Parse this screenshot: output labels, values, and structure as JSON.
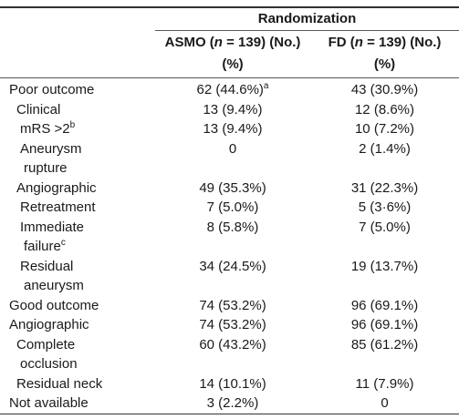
{
  "table": {
    "group_header": "Randomization",
    "columns": [
      {
        "text_before": "ASMO (",
        "italic": "n",
        "text_after": " = 139) (No.) (%)"
      },
      {
        "text_before": "FD (",
        "italic": "n",
        "text_after": " = 139) (No.) (%)"
      }
    ],
    "rows": [
      {
        "label": "Poor outcome",
        "values": [
          "62 (44.6%)",
          "43 (30.9%)"
        ],
        "value_note": "a"
      },
      {
        "label": "Clinical",
        "values": [
          "13 (9.4%)",
          "12 (8.6%)"
        ]
      },
      {
        "label": "mRS >2",
        "label_note": "b",
        "values": [
          "13 (9.4%)",
          "10 (7.2%)"
        ]
      },
      {
        "label": "Aneurysm rupture",
        "values": [
          "0",
          "2 (1.4%)"
        ]
      },
      {
        "label": "Angiographic",
        "values": [
          "49 (35.3%)",
          "31 (22.3%)"
        ]
      },
      {
        "label": "Retreatment",
        "values": [
          "7 (5.0%)",
          "5 (3·6%)"
        ]
      },
      {
        "label": "Immediate failure",
        "label_note": "c",
        "values": [
          "8 (5.8%)",
          "7 (5.0%)"
        ]
      },
      {
        "label": "Residual aneurysm",
        "values": [
          "34 (24.5%)",
          "19 (13.7%)"
        ]
      },
      {
        "label": "Good outcome",
        "values": [
          "74 (53.2%)",
          "96 (69.1%)"
        ]
      },
      {
        "label": "Angiographic",
        "values": [
          "74 (53.2%)",
          "96 (69.1%)"
        ]
      },
      {
        "label": "Complete occlusion",
        "values": [
          "60 (43.2%)",
          "85 (61.2%)"
        ]
      },
      {
        "label": "Residual neck",
        "values": [
          "14 (10.1%)",
          "11 (7.9%)"
        ]
      },
      {
        "label": "Not available",
        "values": [
          "3 (2.2%)",
          "0"
        ]
      }
    ]
  }
}
